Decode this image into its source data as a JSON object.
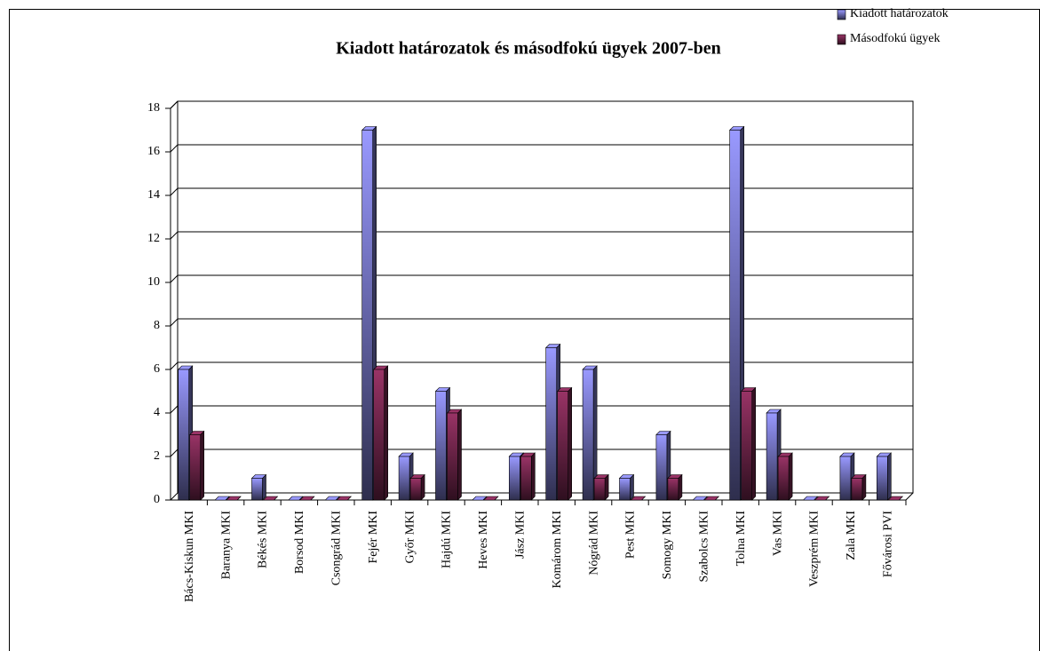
{
  "chart_data": {
    "type": "bar3d",
    "title": "Kiadott határozatok és másodfokú ügyek 2007-ben",
    "categories": [
      "Bács-Kiskun MKI",
      "Baranya MKI",
      "Békés MKI",
      "Borsod MKI",
      "Csongrád MKI",
      "Fejér MKI",
      "Győr MKI",
      "Hajdú MKI",
      "Heves MKI",
      "Jász MKI",
      "Komárom MKI",
      "Nógrád MKI",
      "Pest MKI",
      "Somogy MKI",
      "Szabolcs MKI",
      "Tolna MKI",
      "Vas MKI",
      "Veszprém MKI",
      "Zala MKI",
      "Fővárosi PVI"
    ],
    "series": [
      {
        "name": "Kiadott határozatok",
        "color": "#9999ff",
        "values": [
          6,
          0,
          1,
          0,
          0,
          17,
          2,
          5,
          0,
          2,
          7,
          6,
          1,
          3,
          0,
          17,
          4,
          0,
          2,
          2
        ]
      },
      {
        "name": "Másodfokú ügyek",
        "color": "#993366",
        "values": [
          3,
          0,
          0,
          0,
          0,
          6,
          1,
          4,
          0,
          2,
          5,
          1,
          0,
          1,
          0,
          5,
          2,
          0,
          1,
          0
        ]
      }
    ],
    "ylim": [
      0,
      18
    ],
    "yticks": [
      0,
      2,
      4,
      6,
      8,
      10,
      12,
      14,
      16,
      18
    ],
    "grid": true,
    "legend": "top-right"
  }
}
